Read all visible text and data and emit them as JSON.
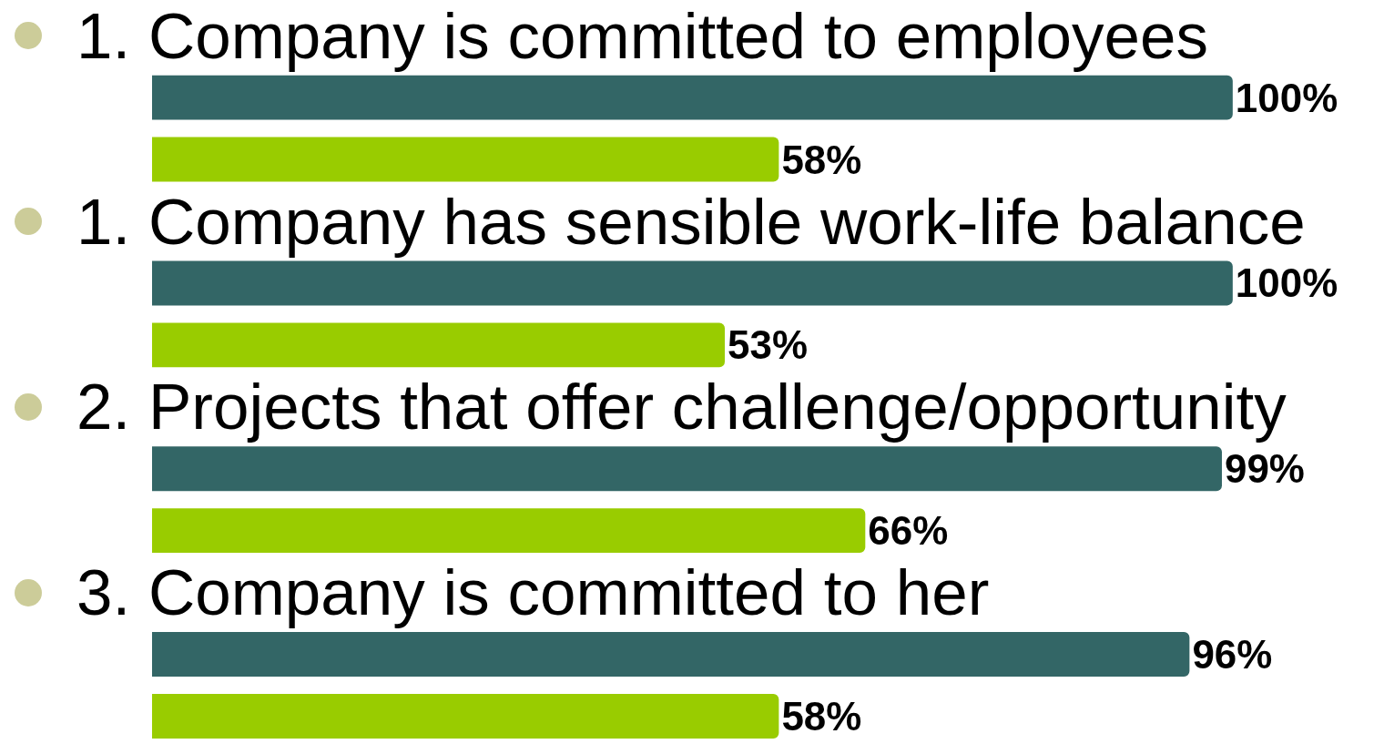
{
  "chart_data": {
    "type": "bar",
    "orientation": "horizontal",
    "categories": [
      "1. Company is committed to employees",
      "1. Company has sensible work-life balance",
      "2. Projects that offer challenge/opportunity",
      "3. Company is committed to her"
    ],
    "series": [
      {
        "color": "#336666",
        "values": [
          100,
          100,
          99,
          96
        ],
        "value_labels": [
          "100%",
          "100%",
          "99%",
          "96%"
        ]
      },
      {
        "color": "#99cc00",
        "values": [
          58,
          53,
          66,
          58
        ],
        "value_labels": [
          "58%",
          "53%",
          "66%",
          "58%"
        ]
      }
    ]
  }
}
